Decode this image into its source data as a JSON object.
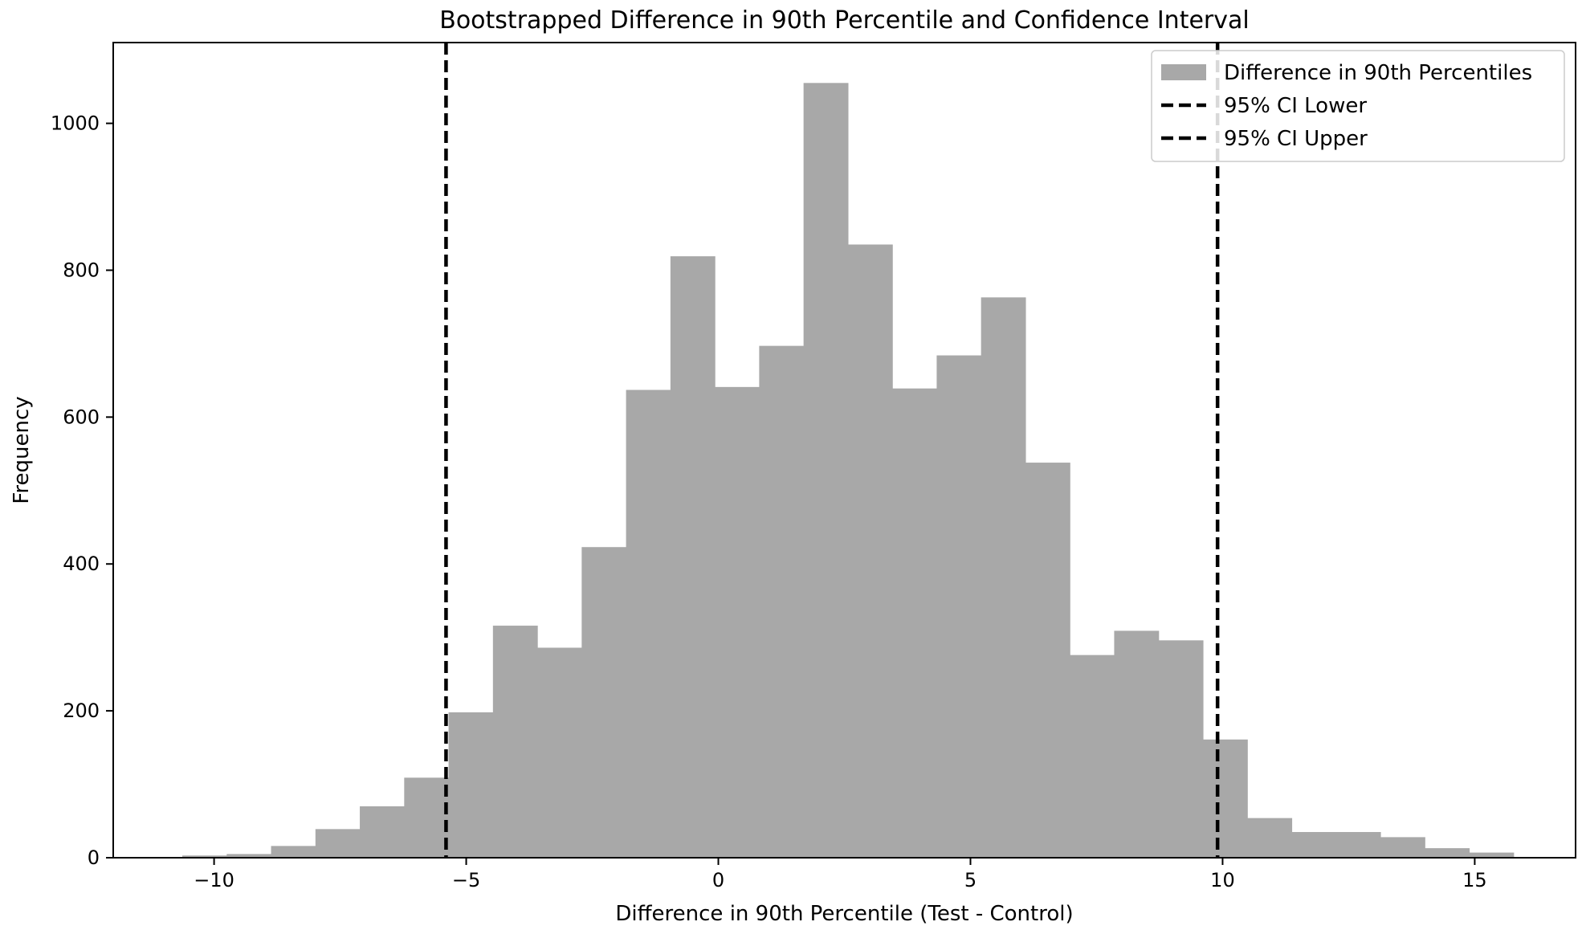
{
  "chart_data": {
    "type": "bar",
    "title": "Bootstrapped Difference in 90th Percentile and Confidence Interval",
    "xlabel": "Difference in 90th Percentile (Test - Control)",
    "ylabel": "Frequency",
    "xlim": [
      -12.0,
      17.0
    ],
    "ylim": [
      0,
      1110
    ],
    "xticks": [
      -10,
      -5,
      0,
      5,
      10,
      15
    ],
    "xtick_labels": [
      "−10",
      "−5",
      "0",
      "5",
      "10",
      "15"
    ],
    "yticks": [
      0,
      200,
      400,
      600,
      800,
      1000
    ],
    "ytick_labels": [
      "0",
      "200",
      "400",
      "600",
      "800",
      "1000"
    ],
    "grid": false,
    "legend_position": "top-right",
    "histogram": {
      "name": "Difference in 90th Percentiles",
      "color": "#a8a8a8",
      "bin_edges": [
        -10.63,
        -9.75,
        -8.87,
        -7.99,
        -7.11,
        -6.23,
        -5.35,
        -4.47,
        -3.59,
        -2.71,
        -1.83,
        -0.95,
        -0.07,
        0.81,
        1.69,
        2.57,
        3.45,
        4.33,
        5.21,
        6.09,
        6.97,
        7.85,
        8.73,
        9.61,
        10.49,
        11.37,
        12.25,
        13.13,
        14.01,
        14.89,
        15.77
      ],
      "counts": [
        3,
        5,
        16,
        39,
        70,
        109,
        198,
        316,
        286,
        423,
        637,
        819,
        641,
        697,
        1055,
        835,
        639,
        684,
        763,
        538,
        276,
        309,
        296,
        161,
        54,
        35,
        35,
        28,
        13,
        7
      ]
    },
    "lines": [
      {
        "name": "95% CI Lower",
        "x": -5.4,
        "color": "#000000",
        "style": "dashed"
      },
      {
        "name": "95% CI Upper",
        "x": 9.9,
        "color": "#000000",
        "style": "dashed"
      }
    ]
  }
}
